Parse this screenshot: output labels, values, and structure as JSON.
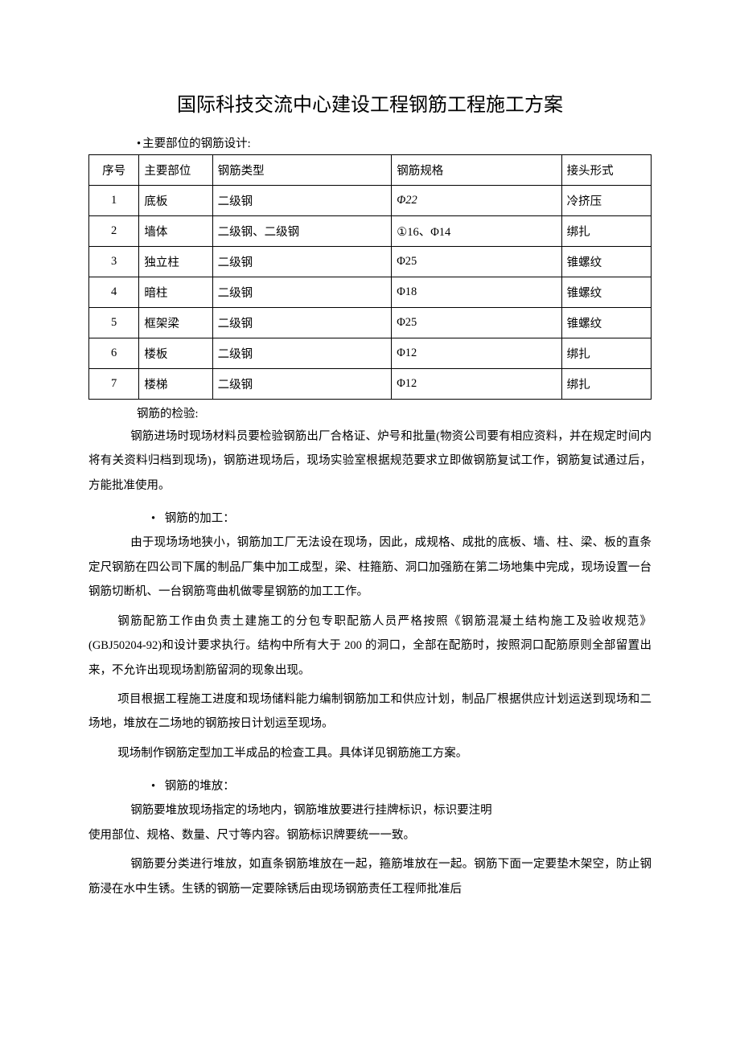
{
  "title": "国际科技交流中心建设工程钢筋工程施工方案",
  "section1": {
    "label": "主要部位的钢筋设计:"
  },
  "table": {
    "headers": {
      "seq": "序号",
      "part": "主要部位",
      "type": "钢筋类型",
      "spec": "钢筋规格",
      "join": "接头形式"
    },
    "rows": [
      {
        "seq": "1",
        "part": "底板",
        "type": "二级钢",
        "spec": "Φ22",
        "join": "冷挤压"
      },
      {
        "seq": "2",
        "part": "墙体",
        "type": "二级钢、二级钢",
        "spec": "①16、Φ14",
        "join": "绑扎"
      },
      {
        "seq": "3",
        "part": "独立柱",
        "type": "二级钢",
        "spec": "Φ25",
        "join": "锥螺纹"
      },
      {
        "seq": "4",
        "part": "暗柱",
        "type": "二级钢",
        "spec": "Φ18",
        "join": "锥螺纹"
      },
      {
        "seq": "5",
        "part": "框架梁",
        "type": "二级钢",
        "spec": "Φ25",
        "join": "锥螺纹"
      },
      {
        "seq": "6",
        "part": "楼板",
        "type": "二级钢",
        "spec": "Φ12",
        "join": "绑扎"
      },
      {
        "seq": "7",
        "part": "楼梯",
        "type": "二级钢",
        "spec": "Φ12",
        "join": "绑扎"
      }
    ]
  },
  "section2": {
    "label": "钢筋的检验:",
    "p1": "钢筋进场时现场材料员要检验钢筋出厂合格证、炉号和批量(物资公司要有相应资料，并在规定时间内将有关资料归档到现场)，钢筋进现场后，现场实验室根据规范要求立即做钢筋复试工作，钢筋复试通过后，方能批准使用。"
  },
  "section3": {
    "label": "钢筋的加工：",
    "p1": "由于现场场地狭小，钢筋加工厂无法设在现场，因此，成规格、成批的底板、墙、柱、梁、板的直条定尺钢筋在四公司下属的制品厂集中加工成型，梁、柱箍筋、洞口加强筋在第二场地集中完成，现场设置一台钢筋切断机、一台钢筋弯曲机做零星钢筋的加工工作。",
    "p2": "钢筋配筋工作由负责土建施工的分包专职配筋人员严格按照《钢筋混凝土结构施工及验收规范》(GBJ50204-92)和设计要求执行。结构中所有大于 200 的洞口，全部在配筋时，按照洞口配筋原则全部留置出来，不允许出现现场割筋留洞的现象出现。",
    "p3": "项目根据工程施工进度和现场储料能力编制钢筋加工和供应计划，制品厂根据供应计划运送到现场和二场地，堆放在二场地的钢筋按日计划运至现场。",
    "p4": "现场制作钢筋定型加工半成品的检查工具。具体详见钢筋施工方案。"
  },
  "section4": {
    "label": "钢筋的堆放：",
    "p1": "钢筋要堆放现场指定的场地内，钢筋堆放要进行挂牌标识，标识要注明",
    "p2": "使用部位、规格、数量、尺寸等内容。钢筋标识牌要统一一致。",
    "p3": "钢筋要分类进行堆放，如直条钢筋堆放在一起，箍筋堆放在一起。钢筋下面一定要垫木架空，防止钢筋浸在水中生锈。生锈的钢筋一定要除锈后由现场钢筋责任工程师批准后"
  }
}
